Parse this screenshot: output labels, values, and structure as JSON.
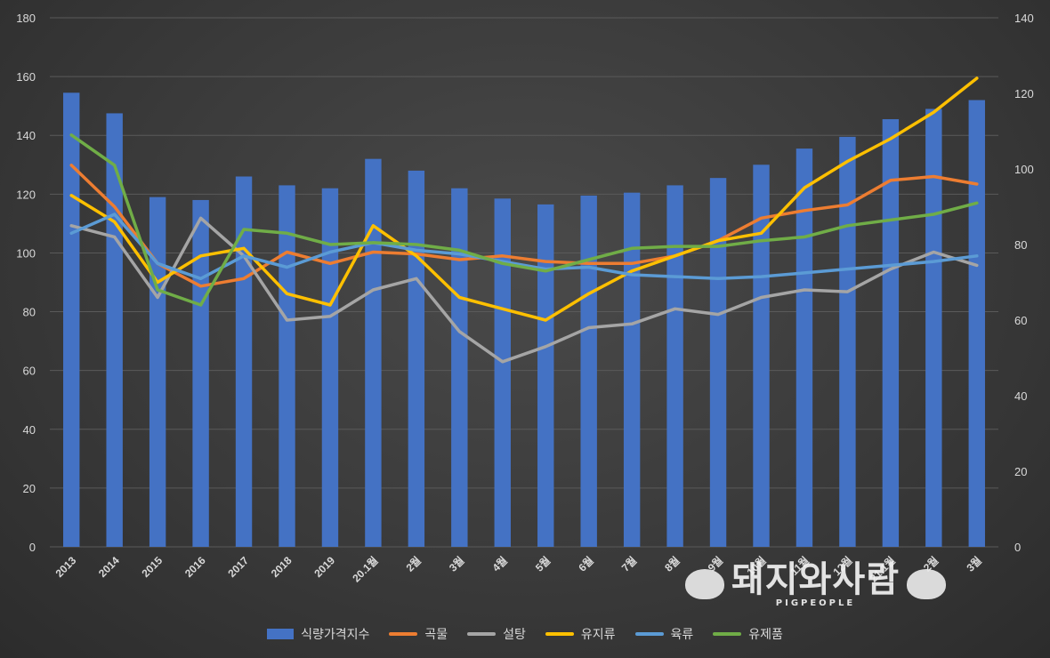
{
  "chart_data": {
    "type": "bar",
    "categories": [
      "2013",
      "2014",
      "2015",
      "2016",
      "2017",
      "2018",
      "2019",
      "20.1월",
      "2월",
      "3월",
      "4월",
      "5월",
      "6월",
      "7월",
      "8월",
      "9월",
      "10월",
      "11월",
      "12월",
      "21.1월",
      "2월",
      "3월"
    ],
    "bar_series": {
      "name": "식량가격지수",
      "axis": "left",
      "color": "#4472c4",
      "values": [
        154.5,
        147.5,
        119,
        118,
        126,
        123,
        122,
        132,
        128,
        122,
        118.5,
        116.5,
        119.5,
        120.5,
        123,
        125.5,
        130,
        135.5,
        139.5,
        145.5,
        149,
        152
      ]
    },
    "series": [
      {
        "name": "곡물",
        "axis": "right",
        "color": "#ed7d31",
        "values": [
          101,
          90,
          75,
          69,
          71,
          78,
          75,
          78,
          77.5,
          76,
          77,
          75.5,
          75,
          75,
          77,
          81,
          87,
          89,
          90.5,
          97,
          98,
          96
        ]
      },
      {
        "name": "설탕",
        "axis": "right",
        "color": "#a5a5a5",
        "values": [
          85,
          82,
          66,
          87,
          77,
          60,
          61,
          68,
          71,
          57,
          49,
          53,
          58,
          59,
          63,
          61.5,
          66,
          68,
          67.5,
          73.5,
          78,
          74.5
        ]
      },
      {
        "name": "유지류",
        "axis": "right",
        "color": "#ffc000",
        "values": [
          93,
          86,
          70,
          77,
          79,
          67,
          64,
          85,
          77,
          66,
          63,
          60,
          67,
          73,
          77,
          81,
          83,
          95,
          102,
          108,
          115,
          124
        ]
      },
      {
        "name": "육류",
        "axis": "right",
        "color": "#5b9bd5",
        "values": [
          83,
          88,
          75,
          71,
          77,
          74,
          78,
          80.5,
          78.5,
          77.5,
          75.5,
          73.5,
          74,
          72,
          71.5,
          71,
          71.5,
          72.5,
          73.5,
          74.5,
          75.5,
          77
        ]
      },
      {
        "name": "유제품",
        "axis": "right",
        "color": "#70ad47",
        "values": [
          109,
          101,
          68,
          64,
          84,
          83,
          80,
          80.5,
          80,
          78.5,
          75,
          73,
          76,
          79,
          79.5,
          79.5,
          81,
          82,
          85,
          86.5,
          88,
          91
        ]
      }
    ],
    "y_left": {
      "min": 0,
      "max": 180,
      "ticks": [
        0,
        20,
        40,
        60,
        80,
        100,
        120,
        140,
        160,
        180
      ]
    },
    "y_right": {
      "min": 0,
      "max": 140,
      "ticks": [
        0,
        20,
        40,
        60,
        80,
        100,
        120,
        140
      ]
    },
    "grid": true,
    "legend_position": "bottom"
  },
  "watermark": {
    "text": "돼지와사람",
    "subtext": "PIGPEOPLE"
  }
}
